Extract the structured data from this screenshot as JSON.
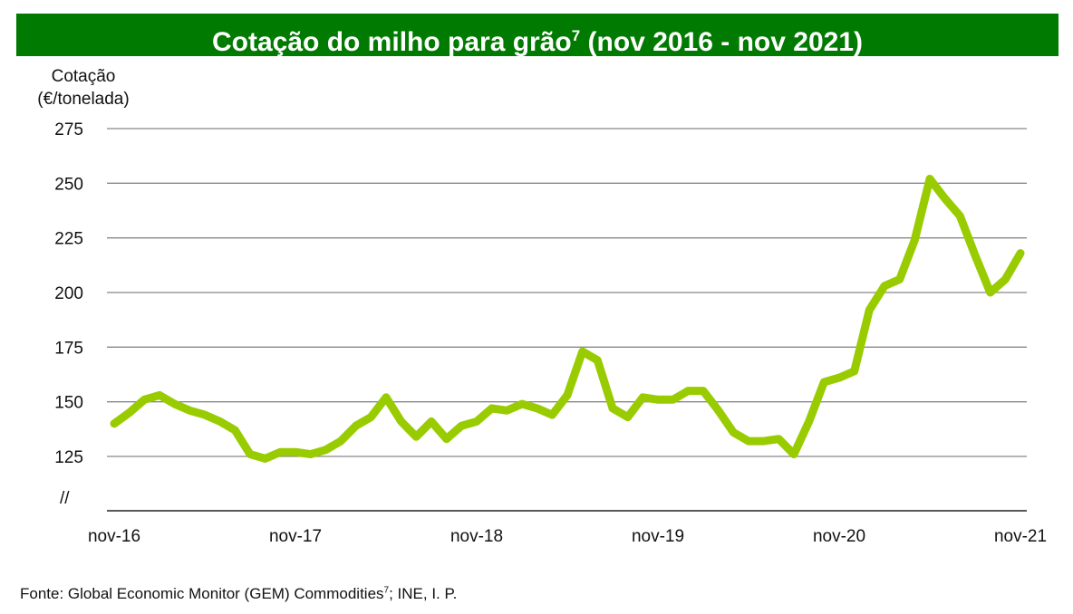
{
  "chart_data": {
    "type": "line",
    "title": "Cotação do milho para grão",
    "title_sup": "7",
    "title_suffix": " (nov 2016 - nov 2021)",
    "ylabel_line1": "Cotação",
    "ylabel_line2": "(€/tonelada)",
    "xlabel": "",
    "ylim": [
      100,
      275
    ],
    "yticks": [
      125,
      150,
      175,
      200,
      225,
      250,
      275
    ],
    "axis_break_label": "//",
    "xtick_labels": [
      "nov-16",
      "nov-17",
      "nov-18",
      "nov-19",
      "nov-20",
      "nov-21"
    ],
    "grid": true,
    "series": [
      {
        "name": "Cotação do milho para grão",
        "color": "#99cc00",
        "values": [
          140,
          145,
          151,
          153,
          149,
          146,
          144,
          141,
          137,
          126,
          124,
          127,
          127,
          126,
          128,
          132,
          139,
          143,
          152,
          141,
          134,
          141,
          133,
          139,
          141,
          147,
          146,
          149,
          147,
          144,
          153,
          173,
          169,
          147,
          143,
          152,
          151,
          151,
          155,
          155,
          146,
          136,
          132,
          132,
          133,
          126,
          141,
          159,
          161,
          164,
          192,
          203,
          206,
          224,
          252,
          243,
          235,
          217,
          200,
          206,
          218
        ]
      }
    ]
  },
  "source": {
    "text": "Fonte: Global Economic Monitor (GEM) Commodities",
    "sup": "7",
    "suffix": "; INE, I. P."
  },
  "colors": {
    "title_bg": "#007a00",
    "line": "#99cc00",
    "grid": "#888888"
  }
}
